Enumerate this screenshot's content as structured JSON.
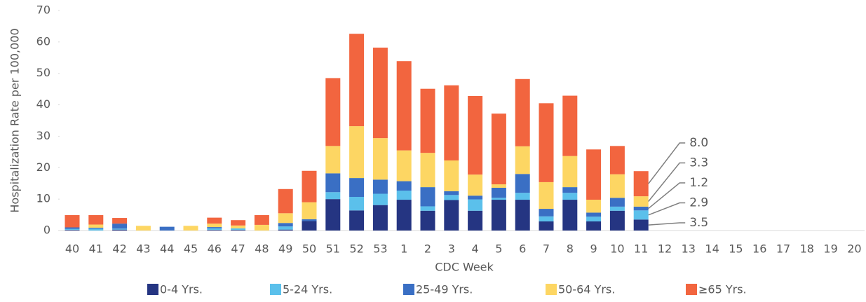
{
  "chart_data": {
    "type": "stacked_bar",
    "y_label": "Hospitalization Rate per 100,000",
    "x_label": "CDC Week",
    "categories": [
      "40",
      "41",
      "42",
      "43",
      "44",
      "45",
      "46",
      "47",
      "48",
      "49",
      "50",
      "51",
      "52",
      "53",
      "1",
      "2",
      "3",
      "4",
      "5",
      "6",
      "7",
      "8",
      "9",
      "10",
      "11",
      "12",
      "13",
      "14",
      "15",
      "16",
      "17",
      "18",
      "19",
      "20"
    ],
    "ylim": [
      0,
      70
    ],
    "yticks": [
      0,
      10,
      20,
      30,
      40,
      50,
      60,
      70
    ],
    "series": [
      {
        "name": "0-4 Yrs.",
        "color": "#253582",
        "values": [
          0.2,
          0,
          0.3,
          0,
          0,
          0,
          0.2,
          0.2,
          0,
          0.3,
          3.0,
          10.0,
          6.4,
          8.1,
          9.8,
          6.3,
          9.7,
          6.3,
          9.8,
          9.8,
          2.9,
          9.8,
          2.9,
          6.3,
          3.5,
          null,
          null,
          null,
          null,
          null,
          null,
          null,
          null,
          null
        ],
        "value_labels": [
          null,
          null,
          null,
          null,
          null,
          null,
          null,
          null,
          null,
          null,
          null,
          null,
          null,
          null,
          null,
          null,
          null,
          null,
          null,
          null,
          null,
          null,
          null,
          null,
          "3.5",
          null,
          null,
          null,
          null,
          null,
          null,
          null,
          null,
          null
        ]
      },
      {
        "name": "5-24 Yrs.",
        "color": "#5bc0eb",
        "values": [
          0.3,
          0.6,
          0.3,
          0,
          0,
          0,
          0.5,
          0.5,
          0,
          1.0,
          0,
          2.2,
          4.3,
          3.6,
          2.9,
          1.4,
          1.6,
          3.6,
          0.6,
          2.2,
          1.6,
          2.2,
          1.5,
          1.3,
          2.9,
          null,
          null,
          null,
          null,
          null,
          null,
          null,
          null,
          null
        ],
        "value_labels": [
          null,
          null,
          null,
          null,
          null,
          null,
          null,
          null,
          null,
          null,
          null,
          null,
          null,
          null,
          null,
          null,
          null,
          null,
          null,
          null,
          null,
          null,
          null,
          null,
          "2.9",
          null,
          null,
          null,
          null,
          null,
          null,
          null,
          null,
          null
        ]
      },
      {
        "name": "25-49 Yrs.",
        "color": "#3a6fc4",
        "values": [
          0.5,
          0.3,
          1.6,
          0,
          1.2,
          0,
          0.4,
          0,
          0,
          1.1,
          0.6,
          6.0,
          6.0,
          4.5,
          3.0,
          6.1,
          1.2,
          1.2,
          3.2,
          6.0,
          2.4,
          1.8,
          1.3,
          2.8,
          1.2,
          null,
          null,
          null,
          null,
          null,
          null,
          null,
          null,
          null
        ],
        "value_labels": [
          null,
          null,
          null,
          null,
          null,
          null,
          null,
          null,
          null,
          null,
          null,
          null,
          null,
          null,
          null,
          null,
          null,
          null,
          null,
          null,
          null,
          null,
          null,
          null,
          "1.2",
          null,
          null,
          null,
          null,
          null,
          null,
          null,
          null,
          null
        ]
      },
      {
        "name": "50-64 Yrs.",
        "color": "#fdd663",
        "values": [
          0,
          1.0,
          0,
          1.5,
          0,
          1.5,
          1.1,
          0.9,
          1.8,
          3.1,
          5.4,
          8.7,
          16.5,
          13.2,
          9.8,
          10.9,
          9.8,
          6.7,
          1.1,
          8.8,
          8.5,
          9.9,
          4.1,
          7.5,
          3.3,
          null,
          null,
          null,
          null,
          null,
          null,
          null,
          null,
          null
        ],
        "value_labels": [
          null,
          null,
          null,
          null,
          null,
          null,
          null,
          null,
          null,
          null,
          null,
          null,
          null,
          null,
          null,
          null,
          null,
          null,
          null,
          null,
          null,
          null,
          null,
          null,
          "3.3",
          null,
          null,
          null,
          null,
          null,
          null,
          null,
          null,
          null
        ]
      },
      {
        "name": "≥65 Yrs.",
        "color": "#f2653f",
        "values": [
          3.9,
          3.0,
          1.8,
          0,
          0,
          0,
          1.9,
          1.7,
          3.1,
          7.7,
          10.0,
          21.6,
          29.4,
          28.8,
          28.4,
          20.4,
          23.9,
          25.0,
          22.5,
          21.4,
          25.1,
          19.2,
          16.0,
          9.0,
          8.0,
          null,
          null,
          null,
          null,
          null,
          null,
          null,
          null,
          null
        ],
        "value_labels": [
          null,
          null,
          null,
          null,
          null,
          null,
          null,
          null,
          null,
          null,
          null,
          null,
          null,
          null,
          null,
          null,
          null,
          null,
          null,
          null,
          null,
          null,
          null,
          null,
          "8.0",
          null,
          null,
          null,
          null,
          null,
          null,
          null,
          null,
          null
        ]
      }
    ]
  }
}
